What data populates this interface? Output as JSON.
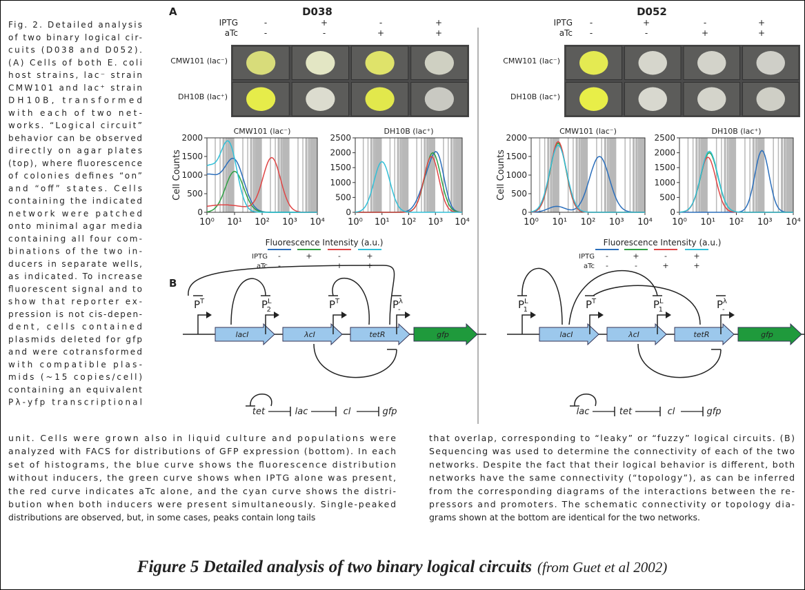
{
  "sidebar": {
    "lines": [
      "Fig. 2. Detailed analysis",
      "of two binary logical cir-",
      "cuits (D038 and D052).",
      "(A) Cells of both E. coli",
      "host strains, lac⁻ strain",
      "CMW101 and lac⁺ strain",
      "DH10B, transformed",
      "with each of two net-",
      "works. “Logical circuit”",
      "behavior can be observed",
      "directly on agar plates",
      "(top), where fluorescence",
      "of colonies defines “on”",
      "and “off” states. Cells",
      "containing the indicated",
      "network were patched",
      "onto minimal agar media",
      "containing all four com-",
      "binations of the two in-",
      "ducers in separate wells,",
      "as indicated. To increase",
      "fluorescent signal and to",
      "show that reporter ex-",
      "pression is not cis-depen-",
      "dent, cells contained",
      "plasmids deleted for gfp",
      "and were cotransformed",
      "with compatible plas-",
      "mids (~15 copies/cell)",
      "containing an equivalent",
      "Pλ-yfp transcriptional"
    ]
  },
  "panel_a": {
    "label": "A",
    "networks": [
      {
        "title": "D038",
        "inducers": [
          {
            "name": "IPTG",
            "signs": [
              "-",
              "+",
              "-",
              "+"
            ]
          },
          {
            "name": "aTc",
            "signs": [
              "-",
              "-",
              "+",
              "+"
            ]
          }
        ],
        "strains": [
          "CMW101 (lac⁻)",
          "DH10B (lac⁺)"
        ],
        "histograms": [
          {
            "title": "CMW101 (lac⁻)",
            "ylabel": "Cell Counts",
            "yticks": [
              0,
              500,
              1000,
              1500,
              2000
            ],
            "xticks": [
              "10⁰",
              "10¹",
              "10²",
              "10³",
              "10⁴"
            ]
          },
          {
            "title": "DH10B (lac⁺)",
            "yticks": [
              0,
              500,
              1000,
              1500,
              2000,
              2500
            ],
            "xticks": [
              "10⁰",
              "10¹",
              "10²",
              "10³",
              "10⁴"
            ]
          }
        ],
        "legend": {
          "title": "Fluorescence Intensity (a.u.)",
          "colors": [
            "#2a6ebb",
            "#2ea043",
            "#e04545",
            "#30c0d8"
          ],
          "rows": [
            {
              "name": "IPTG",
              "signs": [
                "-",
                "+",
                "-",
                "+"
              ]
            },
            {
              "name": "aTc",
              "signs": [
                "-",
                "-",
                "+",
                "+"
              ]
            }
          ]
        }
      },
      {
        "title": "D052",
        "inducers": [
          {
            "name": "IPTG",
            "signs": [
              "-",
              "+",
              "-",
              "+"
            ]
          },
          {
            "name": "aTc",
            "signs": [
              "-",
              "-",
              "+",
              "+"
            ]
          }
        ],
        "strains": [
          "CMW101 (lac⁻)",
          "DH10B (lac⁺)"
        ],
        "histograms": [
          {
            "title": "CMW101 (lac⁻)",
            "ylabel": "Cell Counts",
            "yticks": [
              0,
              500,
              1000,
              1500,
              2000
            ],
            "xticks": [
              "10⁰",
              "10¹",
              "10²",
              "10³",
              "10⁴"
            ]
          },
          {
            "title": "DH10B (lac⁺)",
            "yticks": [
              0,
              500,
              1000,
              1500,
              2000,
              2500
            ],
            "xticks": [
              "10⁰",
              "10¹",
              "10²",
              "10³",
              "10⁴"
            ]
          }
        ],
        "legend": {
          "title": "Fluorescence Intensity (a.u.)",
          "colors": [
            "#2a6ebb",
            "#2ea043",
            "#e04545",
            "#30c0d8"
          ],
          "rows": [
            {
              "name": "IPTG",
              "signs": [
                "-",
                "+",
                "-",
                "+"
              ]
            },
            {
              "name": "aTc",
              "signs": [
                "-",
                "-",
                "+",
                "+"
              ]
            }
          ]
        }
      }
    ]
  },
  "panel_b": {
    "label": "B",
    "diagrams": [
      {
        "genes": [
          "lacI",
          "λcI",
          "tetR",
          "gfp"
        ],
        "promoters": [
          {
            "base": "P",
            "sup": "T"
          },
          {
            "base": "P",
            "sup": "L",
            "sub": "2"
          },
          {
            "base": "P",
            "sup": "T"
          },
          {
            "base": "P",
            "sup": "λ",
            "sub": "-"
          }
        ],
        "topology": [
          "tet",
          "lac",
          "cl",
          "gfp"
        ]
      },
      {
        "genes": [
          "lacI",
          "λcI",
          "tetR",
          "gfp"
        ],
        "promoters": [
          {
            "base": "P",
            "sup": "L",
            "sub": "1"
          },
          {
            "base": "P",
            "sup": "T"
          },
          {
            "base": "P",
            "sup": "L",
            "sub": "1"
          },
          {
            "base": "P",
            "sup": "λ",
            "sub": "-"
          }
        ],
        "topology": [
          "lac",
          "tet",
          "cl",
          "gfp"
        ]
      }
    ]
  },
  "body": {
    "left": [
      "unit. Cells were grown also in liquid culture and populations were",
      "analyzed with FACS for distributions of GFP expression (bottom). In each",
      "set of histograms, the blue curve shows the fluorescence distribution",
      "without inducers, the green curve shows when IPTG alone was present,",
      "the red curve indicates aTc alone, and the cyan curve shows the distri-",
      "bution when both inducers were present simultaneously. Single-peaked",
      "distributions are observed, but, in some cases, peaks contain long tails"
    ],
    "right": [
      "that overlap, corresponding to “leaky” or “fuzzy” logical circuits. (B)",
      "Sequencing was used to determine the connectivity of each of the two",
      "networks. Despite the fact that their logical behavior is different, both",
      "networks have the same connectivity (“topology”), as can be inferred",
      "from the corresponding diagrams of the interactions between the re-",
      "pressors and promoters. The schematic connectivity or topology dia-",
      "grams shown at the bottom are identical for the two networks."
    ]
  },
  "caption": {
    "main": "Figure 5 Detailed analysis of two binary logical circuits",
    "source": "(from Guet et al 2002)"
  }
}
